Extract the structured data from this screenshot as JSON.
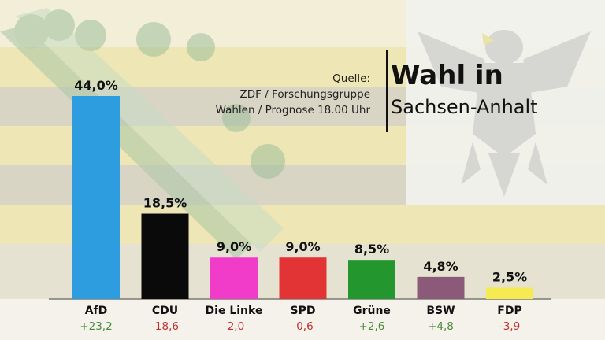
{
  "header": {
    "source_label": "Quelle:",
    "source_line1": "ZDF / Forschungsgruppe",
    "source_line2": "Wahlen / Prognose 18.00 Uhr",
    "title": "Wahl in",
    "subtitle": "Sachsen-Anhalt"
  },
  "colors": {
    "stripe_yellow": "#f2e7a0",
    "stripe_dark": "#d8d4c0",
    "crown_green": "#b8d0b8",
    "positive": "#4a8a3a",
    "negative": "#c03030"
  },
  "chart_data": {
    "type": "bar",
    "title": "",
    "xlabel": "",
    "ylabel": "",
    "ylim": [
      0,
      44
    ],
    "categories": [
      "AfD",
      "CDU",
      "Die Linke",
      "SPD",
      "Grüne",
      "BSW",
      "FDP"
    ],
    "values": [
      44.0,
      18.5,
      9.0,
      9.0,
      8.5,
      4.8,
      2.5
    ],
    "value_labels": [
      "44,0%",
      "18,5%",
      "9,0%",
      "9,0%",
      "8,5%",
      "4,8%",
      "2,5%"
    ],
    "changes": [
      "+23,2",
      "-18,6",
      "-2,0",
      "-0,6",
      "+2,6",
      "+4,8",
      "-3,9"
    ],
    "colors": [
      "#2d9de0",
      "#0a0a0a",
      "#f03cc8",
      "#e23434",
      "#23962e",
      "#8a5a78",
      "#f5ea52"
    ]
  }
}
